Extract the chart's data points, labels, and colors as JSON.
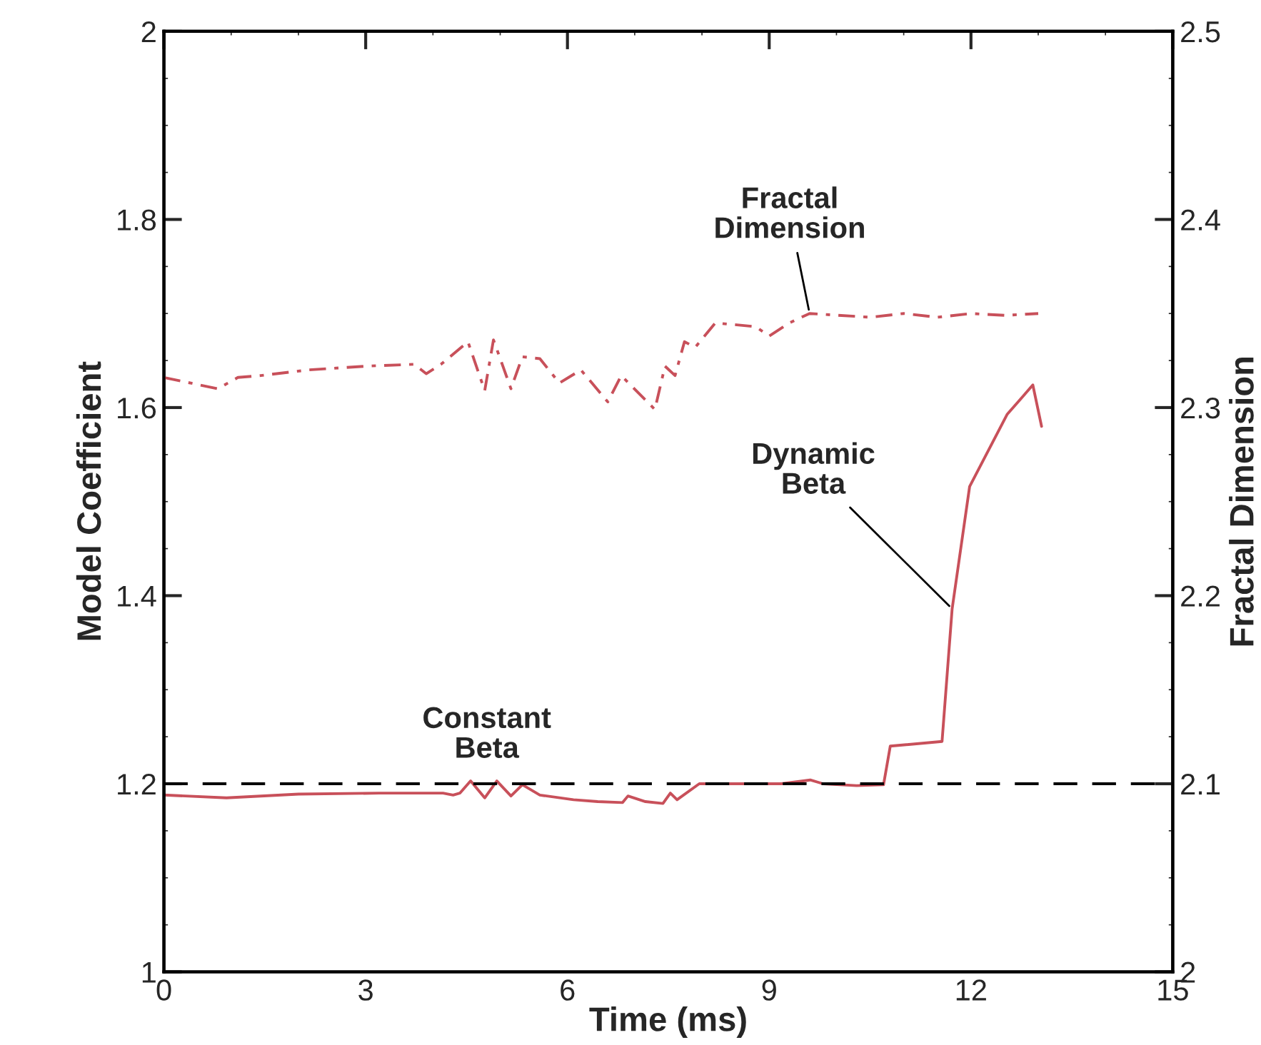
{
  "chart_data": {
    "type": "line",
    "xlabel": "Time (ms)",
    "ylabel": "Model Coefficient",
    "y2label": "Fractal Dimension",
    "xlim": [
      0,
      15
    ],
    "xticks": [
      0,
      3,
      6,
      9,
      12,
      15
    ],
    "ylim": [
      1,
      2
    ],
    "yticks": [
      1,
      {
        "value": 1.2,
        "label": "1.2"
      },
      {
        "value": 1.4,
        "label": "1.4"
      },
      {
        "value": 1.6,
        "label": "1.6"
      },
      {
        "value": 1.8,
        "label": "1.8"
      },
      2
    ],
    "y2lim": [
      2,
      2.5
    ],
    "y2ticks": [
      2,
      {
        "value": 2.1,
        "label": "2.1"
      },
      {
        "value": 2.2,
        "label": "2.2"
      },
      {
        "value": 2.3,
        "label": "2.3"
      },
      {
        "value": 2.4,
        "label": "2.4"
      },
      2.5
    ],
    "grid": false,
    "ref_lines": [
      {
        "axis": "y",
        "value": 1.2,
        "label": "Constant\nBeta",
        "color": "#000000",
        "line_style": "dashed"
      }
    ],
    "series": [
      {
        "color": "#c8505a",
        "line_style": "solid",
        "x": [
          0,
          0.93,
          2.0,
          3.2,
          4.15,
          4.3,
          4.4,
          4.56,
          4.77,
          4.95,
          5.16,
          5.33,
          5.59,
          6.09,
          6.45,
          6.82,
          6.9,
          7.16,
          7.42,
          7.53,
          7.63,
          7.96,
          8.6,
          9.18,
          9.61,
          9.8,
          10.3,
          10.7,
          10.8,
          11.57,
          11.72,
          11.98,
          12.54,
          12.75,
          12.92,
          13.05
        ],
        "values": [
          1.188,
          1.185,
          1.189,
          1.19,
          1.19,
          1.188,
          1.19,
          1.203,
          1.185,
          1.203,
          1.187,
          1.199,
          1.188,
          1.183,
          1.181,
          1.18,
          1.187,
          1.181,
          1.179,
          1.19,
          1.183,
          1.2,
          1.2,
          1.2,
          1.204,
          1.2,
          1.198,
          1.199,
          1.24,
          1.245,
          1.386,
          1.516,
          1.593,
          1.61,
          1.624,
          1.58
        ]
      },
      {
        "color": "#c8505a",
        "line_style": "dashdot",
        "axis": "y2",
        "x": [
          0,
          0.8,
          1.1,
          1.44,
          2.15,
          3.0,
          3.72,
          3.9,
          4.12,
          4.52,
          4.77,
          4.9,
          5.16,
          5.33,
          5.59,
          5.88,
          6.2,
          6.6,
          6.8,
          7.3,
          7.45,
          7.6,
          7.74,
          7.9,
          8.2,
          8.8,
          9.0,
          9.3,
          9.6,
          10.5,
          11.0,
          11.5,
          12.0,
          12.5,
          13.0
        ],
        "values": [
          2.316,
          2.31,
          2.316,
          2.317,
          2.32,
          2.322,
          2.323,
          2.318,
          2.323,
          2.335,
          2.309,
          2.336,
          2.31,
          2.327,
          2.326,
          2.313,
          2.32,
          2.303,
          2.317,
          2.299,
          2.322,
          2.317,
          2.335,
          2.332,
          2.345,
          2.343,
          2.338,
          2.345,
          2.35,
          2.348,
          2.35,
          2.348,
          2.35,
          2.349,
          2.35
        ]
      }
    ],
    "annotations": [
      {
        "text": "Fractal\nDimension",
        "x": 9.6,
        "y": 1.7
      },
      {
        "text": "Dynamic\nBeta",
        "x": 11.72,
        "y": 1.386
      }
    ]
  }
}
